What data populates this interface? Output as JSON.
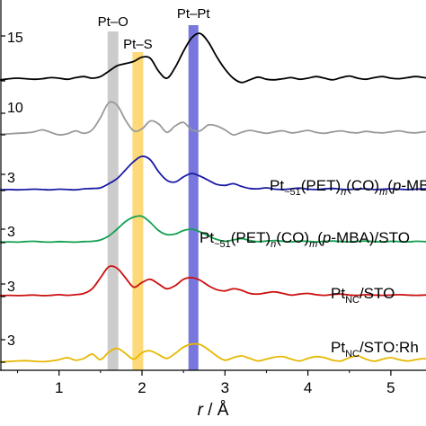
{
  "chart_data": {
    "type": "line",
    "xlabel_italic": "r",
    "xlabel_unit": " / Å",
    "xlim": [
      0,
      6
    ],
    "x_ticks": [
      1,
      2,
      3,
      4,
      5
    ],
    "grid": false,
    "bands": [
      {
        "label": "Pt–O",
        "center": 1.65,
        "color": "#cccccc"
      },
      {
        "label": "Pt–S",
        "center": 1.95,
        "color": "#fdd97a"
      },
      {
        "label": "Pt–Pt",
        "center": 2.62,
        "color": "#7777dd"
      }
    ],
    "scale_labels": [
      "15",
      "10",
      "3",
      "3",
      "3",
      "3"
    ],
    "series": [
      {
        "color": "#000000",
        "label": null,
        "x": [
          0.0,
          0.1,
          0.2,
          0.3,
          0.4,
          0.5,
          0.6,
          0.7,
          0.8,
          0.9,
          1.0,
          1.1,
          1.2,
          1.3,
          1.4,
          1.5,
          1.6,
          1.7,
          1.8,
          1.9,
          2.0,
          2.1,
          2.2,
          2.3,
          2.4,
          2.5,
          2.6,
          2.7,
          2.8,
          2.9,
          3.0,
          3.1,
          3.2,
          3.3,
          3.4,
          3.5,
          3.6,
          3.7,
          3.8,
          3.9,
          4.0,
          4.1,
          4.2,
          4.3,
          4.4,
          4.5,
          4.6,
          4.7,
          4.8,
          4.9,
          5.0,
          5.1,
          5.2,
          5.3,
          5.4,
          5.5,
          5.6,
          5.7,
          5.8,
          5.9,
          6.0
        ],
        "y": [
          0.02,
          0.01,
          0.01,
          0.02,
          0.04,
          0.05,
          0.04,
          0.03,
          0.04,
          0.06,
          0.05,
          0.03,
          0.06,
          0.08,
          0.05,
          0.08,
          0.18,
          0.28,
          0.32,
          0.36,
          0.44,
          0.42,
          0.18,
          0.05,
          0.25,
          0.55,
          0.8,
          0.88,
          0.72,
          0.45,
          0.22,
          0.05,
          -0.03,
          0.02,
          0.07,
          0.03,
          0.02,
          0.04,
          0.06,
          0.03,
          0.05,
          0.08,
          0.05,
          0.02,
          0.06,
          0.09,
          0.05,
          0.03,
          0.06,
          0.08,
          0.05,
          0.04,
          0.06,
          0.08,
          0.06,
          0.04,
          0.05,
          0.06,
          0.05,
          0.04,
          0.03
        ]
      },
      {
        "color": "#999999",
        "label": null,
        "x": [
          0.0,
          0.1,
          0.2,
          0.3,
          0.4,
          0.5,
          0.6,
          0.7,
          0.8,
          0.9,
          1.0,
          1.1,
          1.2,
          1.3,
          1.4,
          1.5,
          1.6,
          1.7,
          1.8,
          1.9,
          2.0,
          2.1,
          2.2,
          2.3,
          2.4,
          2.5,
          2.6,
          2.7,
          2.8,
          2.9,
          3.0,
          3.1,
          3.2,
          3.3,
          3.4,
          3.5,
          3.6,
          3.7,
          3.8,
          3.9,
          4.0,
          4.1,
          4.2,
          4.3,
          4.4,
          4.5,
          4.6,
          4.7,
          4.8,
          4.9,
          5.0,
          5.1,
          5.2,
          5.3,
          5.4,
          5.5,
          5.6,
          5.7,
          5.8,
          5.9,
          6.0
        ],
        "y": [
          0.01,
          0.01,
          0.02,
          0.01,
          0.02,
          0.03,
          0.04,
          0.06,
          0.1,
          0.05,
          0.0,
          0.02,
          0.08,
          0.03,
          0.1,
          0.35,
          0.65,
          0.6,
          0.3,
          0.08,
          0.12,
          0.28,
          0.22,
          0.05,
          0.18,
          0.25,
          0.1,
          0.08,
          0.2,
          0.18,
          0.1,
          0.0,
          0.05,
          0.09,
          0.06,
          0.03,
          0.06,
          0.08,
          0.04,
          0.06,
          0.09,
          0.05,
          0.03,
          0.06,
          0.08,
          0.05,
          0.04,
          0.07,
          0.05,
          0.04,
          0.06,
          0.08,
          0.05,
          0.04,
          0.06,
          0.07,
          0.05,
          0.04,
          0.05,
          0.06,
          0.05
        ]
      },
      {
        "color": "#1a1aa6",
        "label_parts": [
          {
            "t": "Pt"
          },
          {
            "t": "~51",
            "sub": true
          },
          {
            "t": "(PET)"
          },
          {
            "t": "n",
            "sub": true,
            "it": true
          },
          {
            "t": "(CO)"
          },
          {
            "t": "m",
            "sub": true,
            "it": true
          },
          {
            "t": "("
          },
          {
            "t": "p",
            "it": true
          },
          {
            "t": "-MBA)"
          }
        ],
        "x": [
          0.0,
          0.1,
          0.2,
          0.3,
          0.4,
          0.5,
          0.6,
          0.7,
          0.8,
          0.9,
          1.0,
          1.1,
          1.2,
          1.3,
          1.4,
          1.5,
          1.6,
          1.7,
          1.8,
          1.9,
          2.0,
          2.1,
          2.2,
          2.3,
          2.4,
          2.5,
          2.6,
          2.7,
          2.8,
          2.9,
          3.0,
          3.1,
          3.2,
          3.3,
          3.4,
          3.5,
          3.6,
          3.7,
          3.8,
          3.9,
          4.0,
          4.1,
          4.2,
          4.3,
          4.4,
          4.5,
          4.6,
          4.7,
          4.8,
          4.9,
          5.0,
          5.1,
          5.2,
          5.3,
          5.4,
          5.5,
          5.6,
          5.7,
          5.8,
          5.9,
          6.0
        ],
        "y": [
          0.01,
          0.01,
          0.02,
          0.02,
          0.03,
          0.02,
          0.03,
          0.04,
          0.03,
          0.02,
          0.04,
          0.03,
          0.02,
          0.05,
          0.06,
          0.08,
          0.2,
          0.35,
          0.6,
          0.85,
          1.0,
          0.9,
          0.55,
          0.3,
          0.25,
          0.4,
          0.5,
          0.42,
          0.3,
          0.18,
          0.15,
          0.2,
          0.12,
          0.06,
          0.05,
          0.08,
          0.04,
          0.03,
          0.05,
          0.07,
          0.04,
          0.03,
          0.05,
          0.06,
          0.04,
          0.03,
          0.05,
          0.05,
          0.03,
          0.04,
          0.05,
          0.04,
          0.03,
          0.04,
          0.05,
          0.04,
          0.03,
          0.04,
          0.04,
          0.03,
          0.03
        ]
      },
      {
        "color": "#12a050",
        "label_parts": [
          {
            "t": "Pt"
          },
          {
            "t": "~51",
            "sub": true
          },
          {
            "t": "(PET)"
          },
          {
            "t": "n",
            "sub": true,
            "it": true
          },
          {
            "t": "(CO)"
          },
          {
            "t": "m",
            "sub": true,
            "it": true
          },
          {
            "t": "("
          },
          {
            "t": "p",
            "it": true
          },
          {
            "t": "-MBA)/STO"
          }
        ],
        "x": [
          0.0,
          0.1,
          0.2,
          0.3,
          0.4,
          0.5,
          0.6,
          0.7,
          0.8,
          0.9,
          1.0,
          1.1,
          1.2,
          1.3,
          1.4,
          1.5,
          1.6,
          1.7,
          1.8,
          1.9,
          2.0,
          2.1,
          2.2,
          2.3,
          2.4,
          2.5,
          2.6,
          2.7,
          2.8,
          2.9,
          3.0,
          3.1,
          3.2,
          3.3,
          3.4,
          3.5,
          3.6,
          3.7,
          3.8,
          3.9,
          4.0,
          4.1,
          4.2,
          4.3,
          4.4,
          4.5,
          4.6,
          4.7,
          4.8,
          4.9,
          5.0,
          5.1,
          5.2,
          5.3,
          5.4,
          5.5,
          5.6,
          5.7,
          5.8,
          5.9,
          6.0
        ],
        "y": [
          0.01,
          0.02,
          0.01,
          0.02,
          0.03,
          0.02,
          0.04,
          0.05,
          0.03,
          0.02,
          0.04,
          0.03,
          0.02,
          0.04,
          0.05,
          0.1,
          0.25,
          0.5,
          0.78,
          0.95,
          0.98,
          0.75,
          0.45,
          0.3,
          0.32,
          0.45,
          0.5,
          0.4,
          0.25,
          0.12,
          0.05,
          0.1,
          0.15,
          0.08,
          0.04,
          0.06,
          0.08,
          0.05,
          0.03,
          0.06,
          0.05,
          0.03,
          0.05,
          0.06,
          0.04,
          0.03,
          0.05,
          0.06,
          0.04,
          0.03,
          0.05,
          0.04,
          0.03,
          0.05,
          0.04,
          0.03,
          0.04,
          0.05,
          0.04,
          0.03,
          0.03
        ]
      },
      {
        "color": "#cc1111",
        "label_parts": [
          {
            "t": "Pt"
          },
          {
            "t": "NC",
            "sub": true
          },
          {
            "t": "/STO"
          }
        ],
        "x": [
          0.0,
          0.1,
          0.2,
          0.3,
          0.4,
          0.5,
          0.6,
          0.7,
          0.8,
          0.9,
          1.0,
          1.1,
          1.2,
          1.3,
          1.4,
          1.5,
          1.6,
          1.7,
          1.8,
          1.9,
          2.0,
          2.1,
          2.2,
          2.3,
          2.4,
          2.5,
          2.6,
          2.7,
          2.8,
          2.9,
          3.0,
          3.1,
          3.2,
          3.3,
          3.4,
          3.5,
          3.6,
          3.7,
          3.8,
          3.9,
          4.0,
          4.1,
          4.2,
          4.3,
          4.4,
          4.5,
          4.6,
          4.7,
          4.8,
          4.9,
          5.0,
          5.1,
          5.2,
          5.3,
          5.4,
          5.5,
          5.6,
          5.7,
          5.8,
          5.9,
          6.0
        ],
        "y": [
          0.01,
          0.02,
          0.02,
          0.03,
          0.04,
          0.03,
          0.04,
          0.05,
          0.03,
          0.04,
          0.06,
          0.04,
          0.06,
          0.1,
          0.25,
          0.6,
          0.95,
          0.9,
          0.6,
          0.3,
          0.45,
          0.55,
          0.4,
          0.25,
          0.35,
          0.55,
          0.6,
          0.52,
          0.35,
          0.22,
          0.18,
          0.25,
          0.2,
          0.1,
          0.08,
          0.12,
          0.15,
          0.1,
          0.05,
          0.08,
          0.1,
          0.06,
          0.04,
          0.07,
          0.08,
          0.05,
          0.04,
          0.06,
          0.05,
          0.04,
          0.05,
          0.06,
          0.05,
          0.04,
          0.05,
          0.06,
          0.05,
          0.04,
          0.05,
          0.05,
          0.04
        ]
      },
      {
        "color": "#e6b800",
        "label_parts": [
          {
            "t": "Pt"
          },
          {
            "t": "NC",
            "sub": true
          },
          {
            "t": "/STO:Rh"
          }
        ],
        "x": [
          0.0,
          0.1,
          0.2,
          0.3,
          0.4,
          0.5,
          0.6,
          0.7,
          0.8,
          0.9,
          1.0,
          1.1,
          1.2,
          1.3,
          1.4,
          1.5,
          1.6,
          1.7,
          1.8,
          1.9,
          2.0,
          2.1,
          2.2,
          2.3,
          2.4,
          2.5,
          2.6,
          2.7,
          2.8,
          2.9,
          3.0,
          3.1,
          3.2,
          3.3,
          3.4,
          3.5,
          3.6,
          3.7,
          3.8,
          3.9,
          4.0,
          4.1,
          4.2,
          4.3,
          4.4,
          4.5,
          4.6,
          4.7,
          4.8,
          4.9,
          5.0,
          5.1,
          5.2,
          5.3,
          5.4,
          5.5,
          5.6,
          5.7,
          5.8,
          5.9,
          6.0
        ],
        "y": [
          0.01,
          0.01,
          0.02,
          0.01,
          0.03,
          0.05,
          0.06,
          0.04,
          0.02,
          0.05,
          0.1,
          0.18,
          0.08,
          0.15,
          0.32,
          0.1,
          0.4,
          0.55,
          0.35,
          0.12,
          0.38,
          0.45,
          0.3,
          0.15,
          0.35,
          0.6,
          0.72,
          0.7,
          0.5,
          0.25,
          0.08,
          0.18,
          0.25,
          0.15,
          0.05,
          0.12,
          0.2,
          0.22,
          0.12,
          0.05,
          0.15,
          0.22,
          0.18,
          0.08,
          0.05,
          0.18,
          0.25,
          0.12,
          0.04,
          0.12,
          0.18,
          0.1,
          0.05,
          0.1,
          0.14,
          0.08,
          0.05,
          0.08,
          0.1,
          0.06,
          0.05
        ]
      }
    ]
  }
}
